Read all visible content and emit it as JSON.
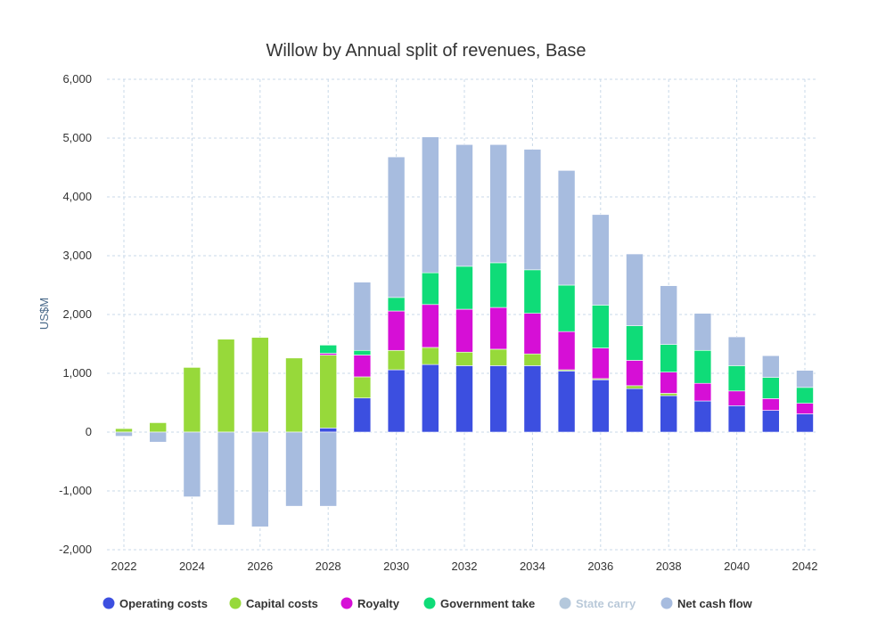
{
  "chart_data": {
    "type": "bar",
    "stacked": true,
    "title": "Willow by Annual split of revenues, Base",
    "ylabel": "US$M",
    "xlabel": "",
    "ylim": [
      -2000,
      6000
    ],
    "yticks": [
      -2000,
      -1000,
      0,
      1000,
      2000,
      3000,
      4000,
      5000,
      6000
    ],
    "ytick_labels": [
      "-2,000",
      "-1,000",
      "0",
      "1,000",
      "2,000",
      "3,000",
      "4,000",
      "5,000",
      "6,000"
    ],
    "categories": [
      "2022",
      "2023",
      "2024",
      "2025",
      "2026",
      "2027",
      "2028",
      "2029",
      "2030",
      "2031",
      "2032",
      "2033",
      "2034",
      "2035",
      "2036",
      "2037",
      "2038",
      "2039",
      "2040",
      "2041",
      "2042"
    ],
    "xtick_labels": [
      "2022",
      "2024",
      "2026",
      "2028",
      "2030",
      "2032",
      "2034",
      "2036",
      "2038",
      "2040",
      "2042"
    ],
    "grid": true,
    "legend_position": "bottom",
    "series": [
      {
        "name": "Operating costs",
        "color": "#3c4fe0",
        "visible": true,
        "values": [
          0,
          0,
          0,
          0,
          0,
          0,
          70,
          580,
          1060,
          1150,
          1130,
          1130,
          1130,
          1040,
          890,
          740,
          620,
          530,
          450,
          370,
          310
        ]
      },
      {
        "name": "Capital costs",
        "color": "#97d93a",
        "visible": true,
        "values": [
          60,
          160,
          1100,
          1580,
          1610,
          1260,
          1240,
          360,
          330,
          290,
          230,
          280,
          200,
          20,
          20,
          50,
          40,
          0,
          0,
          0,
          0
        ]
      },
      {
        "name": "Royalty",
        "color": "#d60fd6",
        "visible": true,
        "values": [
          0,
          0,
          0,
          0,
          0,
          0,
          30,
          370,
          670,
          730,
          730,
          710,
          690,
          650,
          520,
          430,
          360,
          300,
          250,
          200,
          180
        ]
      },
      {
        "name": "Government take",
        "color": "#0fdc78",
        "visible": true,
        "values": [
          0,
          0,
          0,
          0,
          0,
          0,
          140,
          80,
          230,
          540,
          730,
          760,
          740,
          790,
          730,
          590,
          470,
          560,
          430,
          360,
          270
        ]
      },
      {
        "name": "State carry",
        "color": "#b4c8dc",
        "visible": false,
        "values": [
          0,
          0,
          0,
          0,
          0,
          0,
          0,
          0,
          0,
          0,
          0,
          0,
          0,
          0,
          0,
          0,
          0,
          0,
          0,
          0,
          0
        ]
      },
      {
        "name": "Net cash flow",
        "color": "#a7bcdf",
        "visible": true,
        "values": [
          -70,
          -170,
          -1100,
          -1580,
          -1610,
          -1260,
          -1260,
          1160,
          2390,
          2310,
          2070,
          2010,
          2050,
          1950,
          1540,
          1220,
          1000,
          630,
          490,
          370,
          290
        ]
      }
    ]
  }
}
